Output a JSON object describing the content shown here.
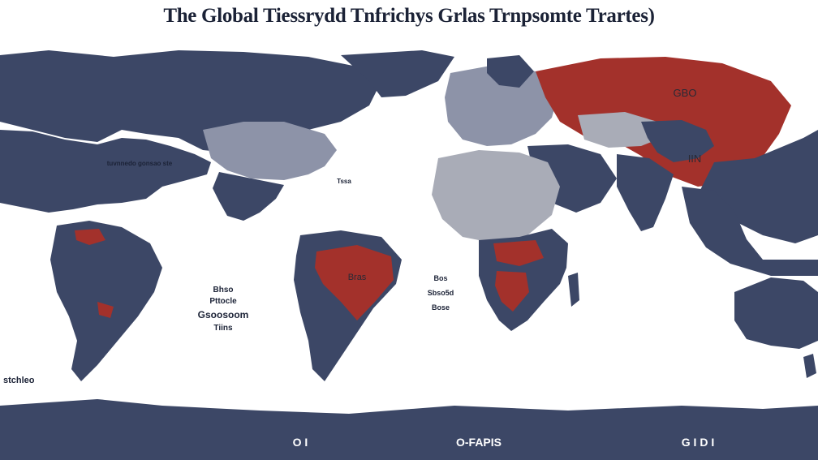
{
  "title": "The Global Tiessrydd Tnfrichys Grlas Trnpsomte Trartes)",
  "colors": {
    "land": "#3c4766",
    "land_light": "#8d93a8",
    "land_gray": "#a9acb7",
    "highlight": "#a3312b",
    "ocean": "#ffffff",
    "border": "#ffffff"
  },
  "labels": {
    "russia_top": "GBO",
    "russia_bottom": "IIN",
    "brazil": "Bras",
    "atlantic_left_1": "Bhso",
    "atlantic_left_2": "Pttocle",
    "atlantic_left_3": "Gsoosoom",
    "atlantic_left_4": "Tiins",
    "atlantic_right_1": "Bos",
    "atlantic_right_2": "Sbso5d",
    "atlantic_right_3": "Bose",
    "west_edge": "stchleo",
    "pacific_caption": "tuvnnedo gonsao ste",
    "caribbean_caption": "Tssa",
    "antarctica_left": "O I",
    "antarctica_middle": "O-FAPIS",
    "antarctica_right": "G I D I"
  }
}
